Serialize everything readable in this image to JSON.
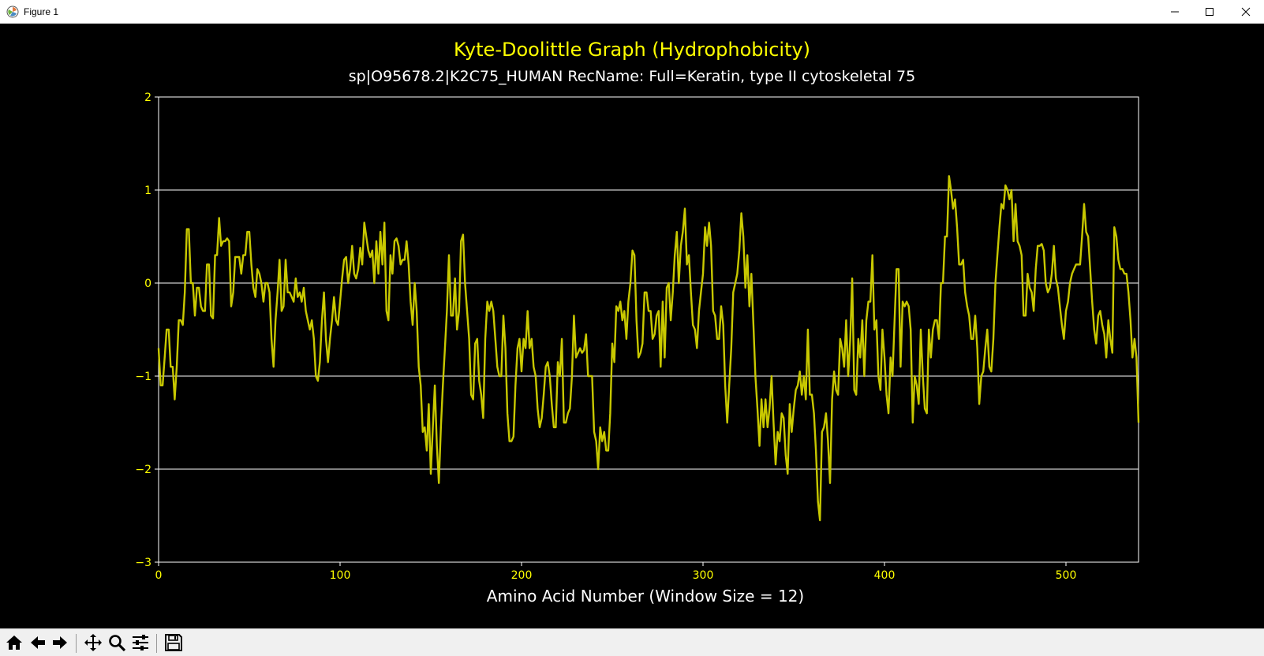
{
  "window": {
    "title": "Figure 1",
    "app_icon": "matplotlib-icon",
    "controls": [
      "minimize-icon",
      "maximize-icon",
      "close-icon"
    ]
  },
  "toolbar": {
    "items": [
      "home-icon",
      "back-arrow-icon",
      "forward-arrow-icon",
      "pan-icon",
      "zoom-icon",
      "configure-subplots-icon",
      "save-icon"
    ]
  },
  "colors": {
    "background": "#000000",
    "line": "#c8c800",
    "title": "#ffff00",
    "text": "#ffffff",
    "tick_labels": "#ffff00",
    "grid": "#ffffff"
  },
  "chart_data": {
    "type": "line",
    "title": "Kyte-Doolittle Graph (Hydrophobicity)",
    "subtitle": "sp|O95678.2|K2C75_HUMAN RecName: Full=Keratin, type II cytoskeletal 75",
    "xlabel": "Amino Acid Number (Window Size = 12)",
    "ylabel": "",
    "xlim": [
      0,
      540
    ],
    "ylim": [
      -3,
      2
    ],
    "xticks": [
      0,
      100,
      200,
      300,
      400,
      500
    ],
    "yticks": [
      -3,
      -2,
      -1,
      0,
      1,
      2
    ],
    "grid": "horizontal",
    "series": [
      {
        "values": [
          -0.7,
          -1.1,
          -1.1,
          -0.8,
          -0.5,
          -0.5,
          -0.9,
          -0.9,
          -1.25,
          -0.9,
          -0.4,
          -0.4,
          -0.45,
          -0.1,
          0.58,
          0.58,
          0.0,
          0.0,
          -0.35,
          -0.05,
          -0.05,
          -0.25,
          -0.3,
          -0.3,
          0.2,
          0.2,
          -0.35,
          -0.38,
          0.3,
          0.3,
          0.7,
          0.4,
          0.45,
          0.45,
          0.48,
          0.45,
          -0.25,
          -0.1,
          0.28,
          0.28,
          0.28,
          0.1,
          0.3,
          0.3,
          0.55,
          0.55,
          0.2,
          -0.05,
          -0.15,
          0.15,
          0.1,
          0.0,
          -0.2,
          0.0,
          0.0,
          -0.1,
          -0.6,
          -0.9,
          -0.4,
          -0.1,
          0.25,
          -0.3,
          -0.25,
          0.25,
          -0.1,
          -0.1,
          -0.15,
          -0.2,
          0.05,
          -0.15,
          -0.1,
          -0.2,
          -0.05,
          -0.3,
          -0.4,
          -0.5,
          -0.4,
          -0.6,
          -1.0,
          -1.05,
          -0.85,
          -0.4,
          -0.1,
          -0.6,
          -0.85,
          -0.6,
          -0.4,
          -0.15,
          -0.4,
          -0.45,
          -0.2,
          0.05,
          0.25,
          0.28,
          0.0,
          0.15,
          0.4,
          0.1,
          0.05,
          0.15,
          0.38,
          0.2,
          0.65,
          0.5,
          0.35,
          0.28,
          0.35,
          0.0,
          0.45,
          0.1,
          0.55,
          0.2,
          0.65,
          -0.3,
          -0.4,
          0.3,
          0.1,
          0.45,
          0.48,
          0.4,
          0.2,
          0.25,
          0.25,
          0.45,
          0.2,
          -0.2,
          -0.45,
          0.0,
          -0.3,
          -0.9,
          -1.1,
          -1.6,
          -1.55,
          -1.8,
          -1.3,
          -2.05,
          -1.55,
          -1.1,
          -1.75,
          -2.15,
          -1.55,
          -1.1,
          -0.7,
          -0.3,
          0.3,
          -0.35,
          -0.35,
          0.05,
          -0.5,
          -0.3,
          0.45,
          0.52,
          0.0,
          -0.3,
          -0.6,
          -1.2,
          -1.25,
          -0.65,
          -0.6,
          -1.05,
          -1.2,
          -1.45,
          -0.6,
          -0.2,
          -0.3,
          -0.2,
          -0.3,
          -0.6,
          -0.9,
          -1.0,
          -1.0,
          -0.35,
          -0.7,
          -1.4,
          -1.7,
          -1.7,
          -1.65,
          -1.1,
          -0.7,
          -0.6,
          -0.95,
          -0.6,
          -0.7,
          -0.3,
          -0.7,
          -0.6,
          -0.9,
          -1.0,
          -1.35,
          -1.55,
          -1.45,
          -1.2,
          -0.9,
          -0.85,
          -1.0,
          -1.3,
          -1.55,
          -1.55,
          -0.85,
          -1.0,
          -0.6,
          -1.5,
          -1.5,
          -1.4,
          -1.35,
          -1.0,
          -0.35,
          -0.8,
          -0.75,
          -0.7,
          -0.75,
          -0.72,
          -0.55,
          -1.0,
          -1.0,
          -1.0,
          -1.6,
          -1.7,
          -2.0,
          -1.55,
          -1.7,
          -1.6,
          -1.8,
          -1.8,
          -1.4,
          -0.65,
          -0.85,
          -0.25,
          -0.3,
          -0.2,
          -0.4,
          -0.3,
          -0.6,
          -0.2,
          0.0,
          0.35,
          0.3,
          -0.4,
          -0.8,
          -0.75,
          -0.65,
          -0.1,
          -0.1,
          -0.3,
          -0.3,
          -0.6,
          -0.55,
          -0.35,
          -0.3,
          -0.9,
          -0.2,
          -0.8,
          -0.05,
          0.0,
          -0.4,
          -0.1,
          0.3,
          0.55,
          0.0,
          0.4,
          0.55,
          0.8,
          0.2,
          0.3,
          -0.1,
          -0.45,
          -0.5,
          -0.7,
          -0.3,
          -0.1,
          0.1,
          0.6,
          0.4,
          0.65,
          0.4,
          -0.3,
          -0.35,
          -0.6,
          -0.6,
          -0.25,
          -0.45,
          -1.1,
          -1.5,
          -1.1,
          -0.7,
          -0.1,
          0.0,
          0.1,
          0.35,
          0.75,
          0.5,
          -0.05,
          0.3,
          -0.25,
          0.1,
          -0.45,
          -1.0,
          -1.35,
          -1.75,
          -1.25,
          -1.55,
          -1.25,
          -1.55,
          -1.35,
          -1.0,
          -1.5,
          -1.95,
          -1.6,
          -1.7,
          -1.4,
          -1.45,
          -1.85,
          -2.05,
          -1.3,
          -1.6,
          -1.35,
          -1.15,
          -1.1,
          -0.95,
          -1.2,
          -1.0,
          -1.25,
          -0.5,
          -1.2,
          -1.2,
          -1.4,
          -1.8,
          -2.35,
          -2.55,
          -1.6,
          -1.55,
          -1.4,
          -1.7,
          -2.15,
          -1.25,
          -0.95,
          -1.15,
          -1.2,
          -0.6,
          -0.7,
          -0.9,
          -0.4,
          -1.0,
          -0.6,
          0.05,
          -1.15,
          -1.2,
          -0.6,
          -0.8,
          -0.4,
          -1.0,
          -0.4,
          -0.2,
          -0.2,
          0.3,
          -0.5,
          -0.4,
          -1.0,
          -1.15,
          -0.5,
          -0.8,
          -1.2,
          -1.4,
          -0.8,
          -1.0,
          -0.4,
          0.15,
          0.15,
          -0.9,
          -0.2,
          -0.25,
          -0.2,
          -0.25,
          -0.5,
          -1.5,
          -1.0,
          -1.1,
          -1.3,
          -0.5,
          -1.0,
          -1.35,
          -1.4,
          -0.5,
          -0.8,
          -0.5,
          -0.4,
          -0.4,
          -0.6,
          0.0,
          0.0,
          0.5,
          0.5,
          1.15,
          1.0,
          0.8,
          0.9,
          0.6,
          0.2,
          0.2,
          0.25,
          -0.1,
          -0.25,
          -0.35,
          -0.6,
          -0.6,
          -0.35,
          -0.7,
          -1.3,
          -1.0,
          -0.95,
          -0.7,
          -0.5,
          -0.9,
          -0.95,
          -0.6,
          0.0,
          0.3,
          0.6,
          0.85,
          0.8,
          1.05,
          1.0,
          0.9,
          1.0,
          0.45,
          0.85,
          0.45,
          0.4,
          0.3,
          -0.35,
          -0.35,
          0.1,
          -0.05,
          -0.1,
          -0.3,
          0.15,
          0.4,
          0.4,
          0.42,
          0.35,
          0.0,
          -0.1,
          -0.05,
          0.1,
          0.4,
          0.05,
          -0.05,
          -0.25,
          -0.45,
          -0.6,
          -0.3,
          -0.2,
          0.0,
          0.1,
          0.15,
          0.2,
          0.2,
          0.2,
          0.5,
          0.85,
          0.55,
          0.5,
          0.15,
          -0.2,
          -0.5,
          -0.65,
          -0.35,
          -0.3,
          -0.45,
          -0.55,
          -0.8,
          -0.4,
          -0.6,
          -0.75,
          0.6,
          0.5,
          0.25,
          0.15,
          0.15,
          0.1,
          0.1,
          -0.1,
          -0.4,
          -0.8,
          -0.6,
          -0.8,
          -1.5
        ]
      }
    ]
  }
}
